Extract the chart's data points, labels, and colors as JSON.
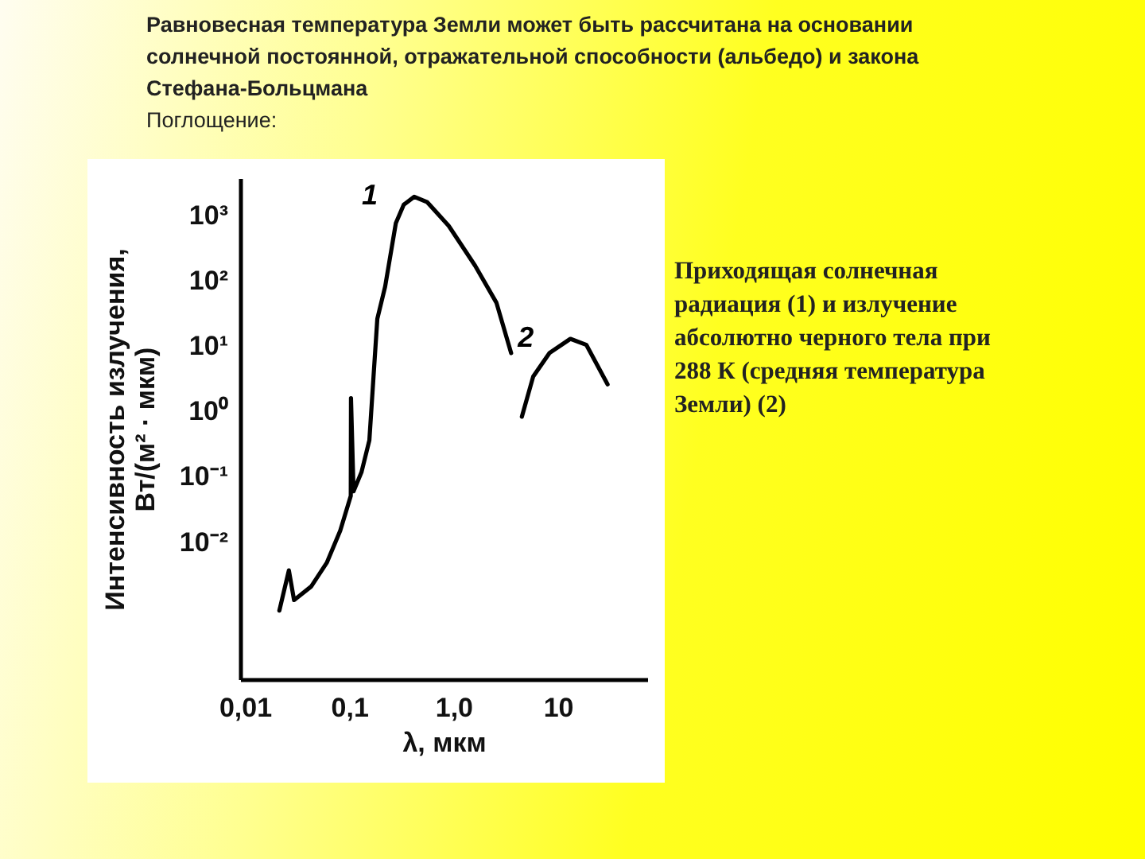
{
  "chart_data": {
    "type": "line",
    "title": "Равновесная температура Земли может быть рассчитана на основании солнечной постоянной, отражательной способности (альбедо) и закона Стефана-Больцмана",
    "subtitle": "Поглощение:",
    "xlabel": "λ, мкм",
    "ylabel": "Интенсивность излучения, Вт/(м² · мкм)",
    "annotations": [
      "Приходящая солнечная радиация (1) и излучение абсолютно черного тела при 288 К (средняя температура Земли) (2)"
    ],
    "log": "xy",
    "line_style": "solid",
    "xlim": [
      0.009,
      72
    ],
    "ylim": [
      8e-05,
      3700
    ],
    "xticks": [
      {
        "value": 0.01,
        "label": "0,01"
      },
      {
        "value": 0.1,
        "label": "0,1"
      },
      {
        "value": 1,
        "label": "1,0"
      },
      10
    ],
    "yticks": [
      {
        "value": 0.01,
        "label": "10⁻²"
      },
      {
        "value": 0.1,
        "label": "10⁻¹"
      },
      {
        "value": 1,
        "label": "10⁰"
      },
      {
        "value": 10,
        "label": "10¹"
      },
      {
        "value": 100,
        "label": "10²"
      },
      {
        "value": 1000,
        "label": "10³"
      }
    ],
    "series": [
      {
        "name": "1",
        "color": "#000000",
        "x": [
          0.0214,
          0.0264,
          0.0296,
          0.0432,
          0.0612,
          0.082,
          0.1035,
          0.104,
          0.11,
          0.131,
          0.156,
          0.171,
          0.186,
          0.221,
          0.28,
          0.333,
          0.42,
          0.56,
          0.9,
          1.61,
          2.58,
          3.57
        ],
        "values": [
          0.0009,
          0.0037,
          0.0013,
          0.0021,
          0.0049,
          0.015,
          0.051,
          1.6,
          0.06,
          0.117,
          0.36,
          3.4,
          26,
          81,
          760,
          1450,
          1920,
          1590,
          690,
          170,
          46,
          7.8
        ]
      },
      {
        "name": "2",
        "color": "#000000",
        "x": [
          4.52,
          5.8,
          8.3,
          13.2,
          18.8,
          30
        ],
        "values": [
          0.83,
          3.4,
          7.8,
          12.9,
          10.4,
          2.6
        ]
      }
    ]
  }
}
